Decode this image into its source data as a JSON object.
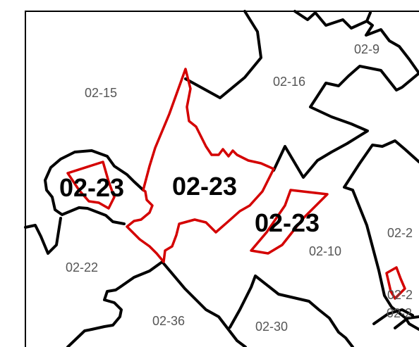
{
  "colors": {
    "boundary": "#000000",
    "highlight": "#d40000",
    "district_label": "#555555",
    "target_label": "#000000",
    "background": "#ffffff"
  },
  "map": {
    "highlighted_district": "02-23",
    "district_labels": [
      "02-9",
      "02-16",
      "02-15",
      "02-22",
      "02-10",
      "02-2",
      "02-36",
      "02-30",
      "02-2",
      "02-2"
    ],
    "target_labels": [
      "02-23",
      "02-23",
      "02-23"
    ]
  }
}
